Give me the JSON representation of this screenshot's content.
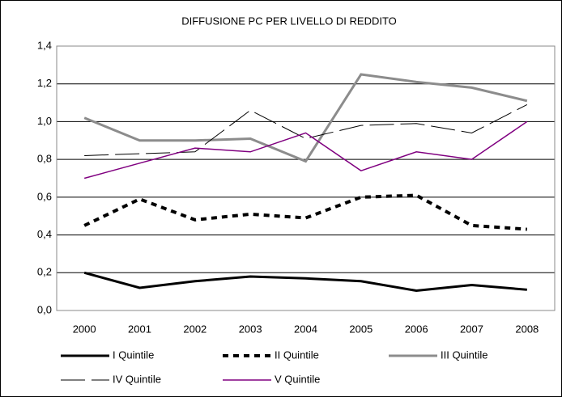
{
  "chart_data": {
    "type": "line",
    "title": "DIFFUSIONE PC PER LIVELLO DI REDDITO",
    "categories": [
      "2000",
      "2001",
      "2002",
      "2003",
      "2004",
      "2005",
      "2006",
      "2007",
      "2008"
    ],
    "series": [
      {
        "name": "I Quintile",
        "color": "#000000",
        "style": "bold",
        "values": [
          0.2,
          0.12,
          0.155,
          0.18,
          0.17,
          0.155,
          0.105,
          0.135,
          0.11
        ]
      },
      {
        "name": "II Quintile",
        "color": "#000000",
        "style": "bold-dashed",
        "values": [
          0.45,
          0.59,
          0.48,
          0.51,
          0.49,
          0.6,
          0.61,
          0.45,
          0.43
        ]
      },
      {
        "name": "III Quintile",
        "color": "#8c8c8c",
        "style": "bold",
        "values": [
          1.02,
          0.9,
          0.9,
          0.91,
          0.79,
          1.25,
          1.21,
          1.18,
          1.11
        ]
      },
      {
        "name": "IV Quintile",
        "color": "#000000",
        "style": "long-dash",
        "values": [
          0.82,
          0.83,
          0.84,
          1.06,
          0.91,
          0.98,
          0.99,
          0.94,
          1.09
        ]
      },
      {
        "name": "V Quintile",
        "color": "#800080",
        "style": "thin",
        "values": [
          0.7,
          0.78,
          0.86,
          0.84,
          0.94,
          0.74,
          0.84,
          0.8,
          1.0
        ]
      }
    ],
    "ylim": [
      0,
      1.4
    ],
    "yticks": [
      {
        "value": 0,
        "label": "0,0"
      },
      {
        "value": 0.2,
        "label": "0,2"
      },
      {
        "value": 0.4,
        "label": "0,4"
      },
      {
        "value": 0.6,
        "label": "0,6"
      },
      {
        "value": 0.8,
        "label": "0,8"
      },
      {
        "value": 1.0,
        "label": "1,0"
      },
      {
        "value": 1.2,
        "label": "1,2"
      },
      {
        "value": 1.4,
        "label": "1,4"
      }
    ],
    "grid": true,
    "legend": "bottom"
  }
}
